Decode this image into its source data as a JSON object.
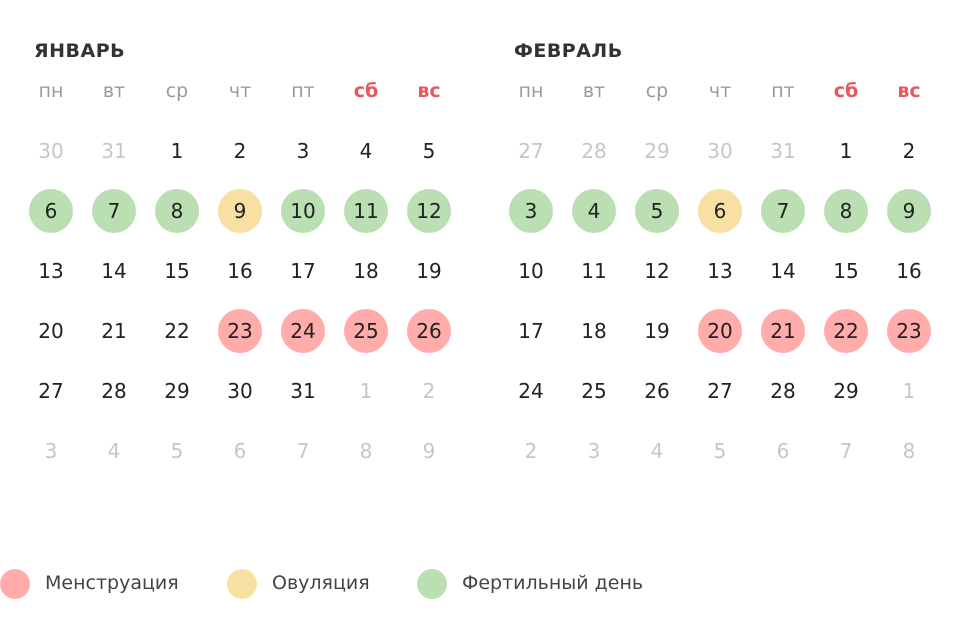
{
  "months": [
    {
      "title": "ЯНВАРЬ",
      "weekdays": [
        {
          "label": "пн"
        },
        {
          "label": "вт"
        },
        {
          "label": "ср"
        },
        {
          "label": "чт"
        },
        {
          "label": "пт"
        },
        {
          "label": "сб",
          "k": "weekend"
        },
        {
          "label": "вс",
          "k": "weekend"
        }
      ],
      "weeks": [
        [
          {
            "d": 30,
            "k": "muted"
          },
          {
            "d": 31,
            "k": "muted"
          },
          {
            "d": 1
          },
          {
            "d": 2
          },
          {
            "d": 3
          },
          {
            "d": 4
          },
          {
            "d": 5
          }
        ],
        [
          {
            "d": 6,
            "k": "fertile"
          },
          {
            "d": 7,
            "k": "fertile"
          },
          {
            "d": 8,
            "k": "fertile"
          },
          {
            "d": 9,
            "k": "ovulation"
          },
          {
            "d": 10,
            "k": "fertile"
          },
          {
            "d": 11,
            "k": "fertile"
          },
          {
            "d": 12,
            "k": "fertile"
          }
        ],
        [
          {
            "d": 13
          },
          {
            "d": 14
          },
          {
            "d": 15
          },
          {
            "d": 16
          },
          {
            "d": 17
          },
          {
            "d": 18
          },
          {
            "d": 19
          }
        ],
        [
          {
            "d": 20
          },
          {
            "d": 21
          },
          {
            "d": 22
          },
          {
            "d": 23,
            "k": "menstruation"
          },
          {
            "d": 24,
            "k": "menstruation"
          },
          {
            "d": 25,
            "k": "menstruation"
          },
          {
            "d": 26,
            "k": "menstruation"
          }
        ],
        [
          {
            "d": 27
          },
          {
            "d": 28
          },
          {
            "d": 29
          },
          {
            "d": 30
          },
          {
            "d": 31
          },
          {
            "d": 1,
            "k": "muted"
          },
          {
            "d": 2,
            "k": "muted"
          }
        ],
        [
          {
            "d": 3,
            "k": "muted"
          },
          {
            "d": 4,
            "k": "muted"
          },
          {
            "d": 5,
            "k": "muted"
          },
          {
            "d": 6,
            "k": "muted"
          },
          {
            "d": 7,
            "k": "muted"
          },
          {
            "d": 8,
            "k": "muted"
          },
          {
            "d": 9,
            "k": "muted"
          }
        ]
      ]
    },
    {
      "title": "ФЕВРАЛЬ",
      "weekdays": [
        {
          "label": "пн"
        },
        {
          "label": "вт"
        },
        {
          "label": "ср"
        },
        {
          "label": "чт"
        },
        {
          "label": "пт"
        },
        {
          "label": "сб",
          "k": "weekend"
        },
        {
          "label": "вс",
          "k": "weekend"
        }
      ],
      "weeks": [
        [
          {
            "d": 27,
            "k": "muted"
          },
          {
            "d": 28,
            "k": "muted"
          },
          {
            "d": 29,
            "k": "muted"
          },
          {
            "d": 30,
            "k": "muted"
          },
          {
            "d": 31,
            "k": "muted"
          },
          {
            "d": 1
          },
          {
            "d": 2
          }
        ],
        [
          {
            "d": 3,
            "k": "fertile"
          },
          {
            "d": 4,
            "k": "fertile"
          },
          {
            "d": 5,
            "k": "fertile"
          },
          {
            "d": 6,
            "k": "ovulation"
          },
          {
            "d": 7,
            "k": "fertile"
          },
          {
            "d": 8,
            "k": "fertile"
          },
          {
            "d": 9,
            "k": "fertile"
          }
        ],
        [
          {
            "d": 10
          },
          {
            "d": 11
          },
          {
            "d": 12
          },
          {
            "d": 13
          },
          {
            "d": 14
          },
          {
            "d": 15
          },
          {
            "d": 16
          }
        ],
        [
          {
            "d": 17
          },
          {
            "d": 18
          },
          {
            "d": 19
          },
          {
            "d": 20,
            "k": "menstruation"
          },
          {
            "d": 21,
            "k": "menstruation"
          },
          {
            "d": 22,
            "k": "menstruation"
          },
          {
            "d": 23,
            "k": "menstruation"
          }
        ],
        [
          {
            "d": 24
          },
          {
            "d": 25
          },
          {
            "d": 26
          },
          {
            "d": 27
          },
          {
            "d": 28
          },
          {
            "d": 29
          },
          {
            "d": 1,
            "k": "muted"
          }
        ],
        [
          {
            "d": 2,
            "k": "muted"
          },
          {
            "d": 3,
            "k": "muted"
          },
          {
            "d": 4,
            "k": "muted"
          },
          {
            "d": 5,
            "k": "muted"
          },
          {
            "d": 6,
            "k": "muted"
          },
          {
            "d": 7,
            "k": "muted"
          },
          {
            "d": 8,
            "k": "muted"
          }
        ]
      ]
    }
  ],
  "legend": [
    {
      "label": "Менструация",
      "k": "menstruation",
      "color": "#ffacab"
    },
    {
      "label": "Овуляция",
      "k": "ovulation",
      "color": "#f8dfa2"
    },
    {
      "label": "Фертильный день",
      "k": "fertile",
      "color": "#badfb3"
    }
  ]
}
